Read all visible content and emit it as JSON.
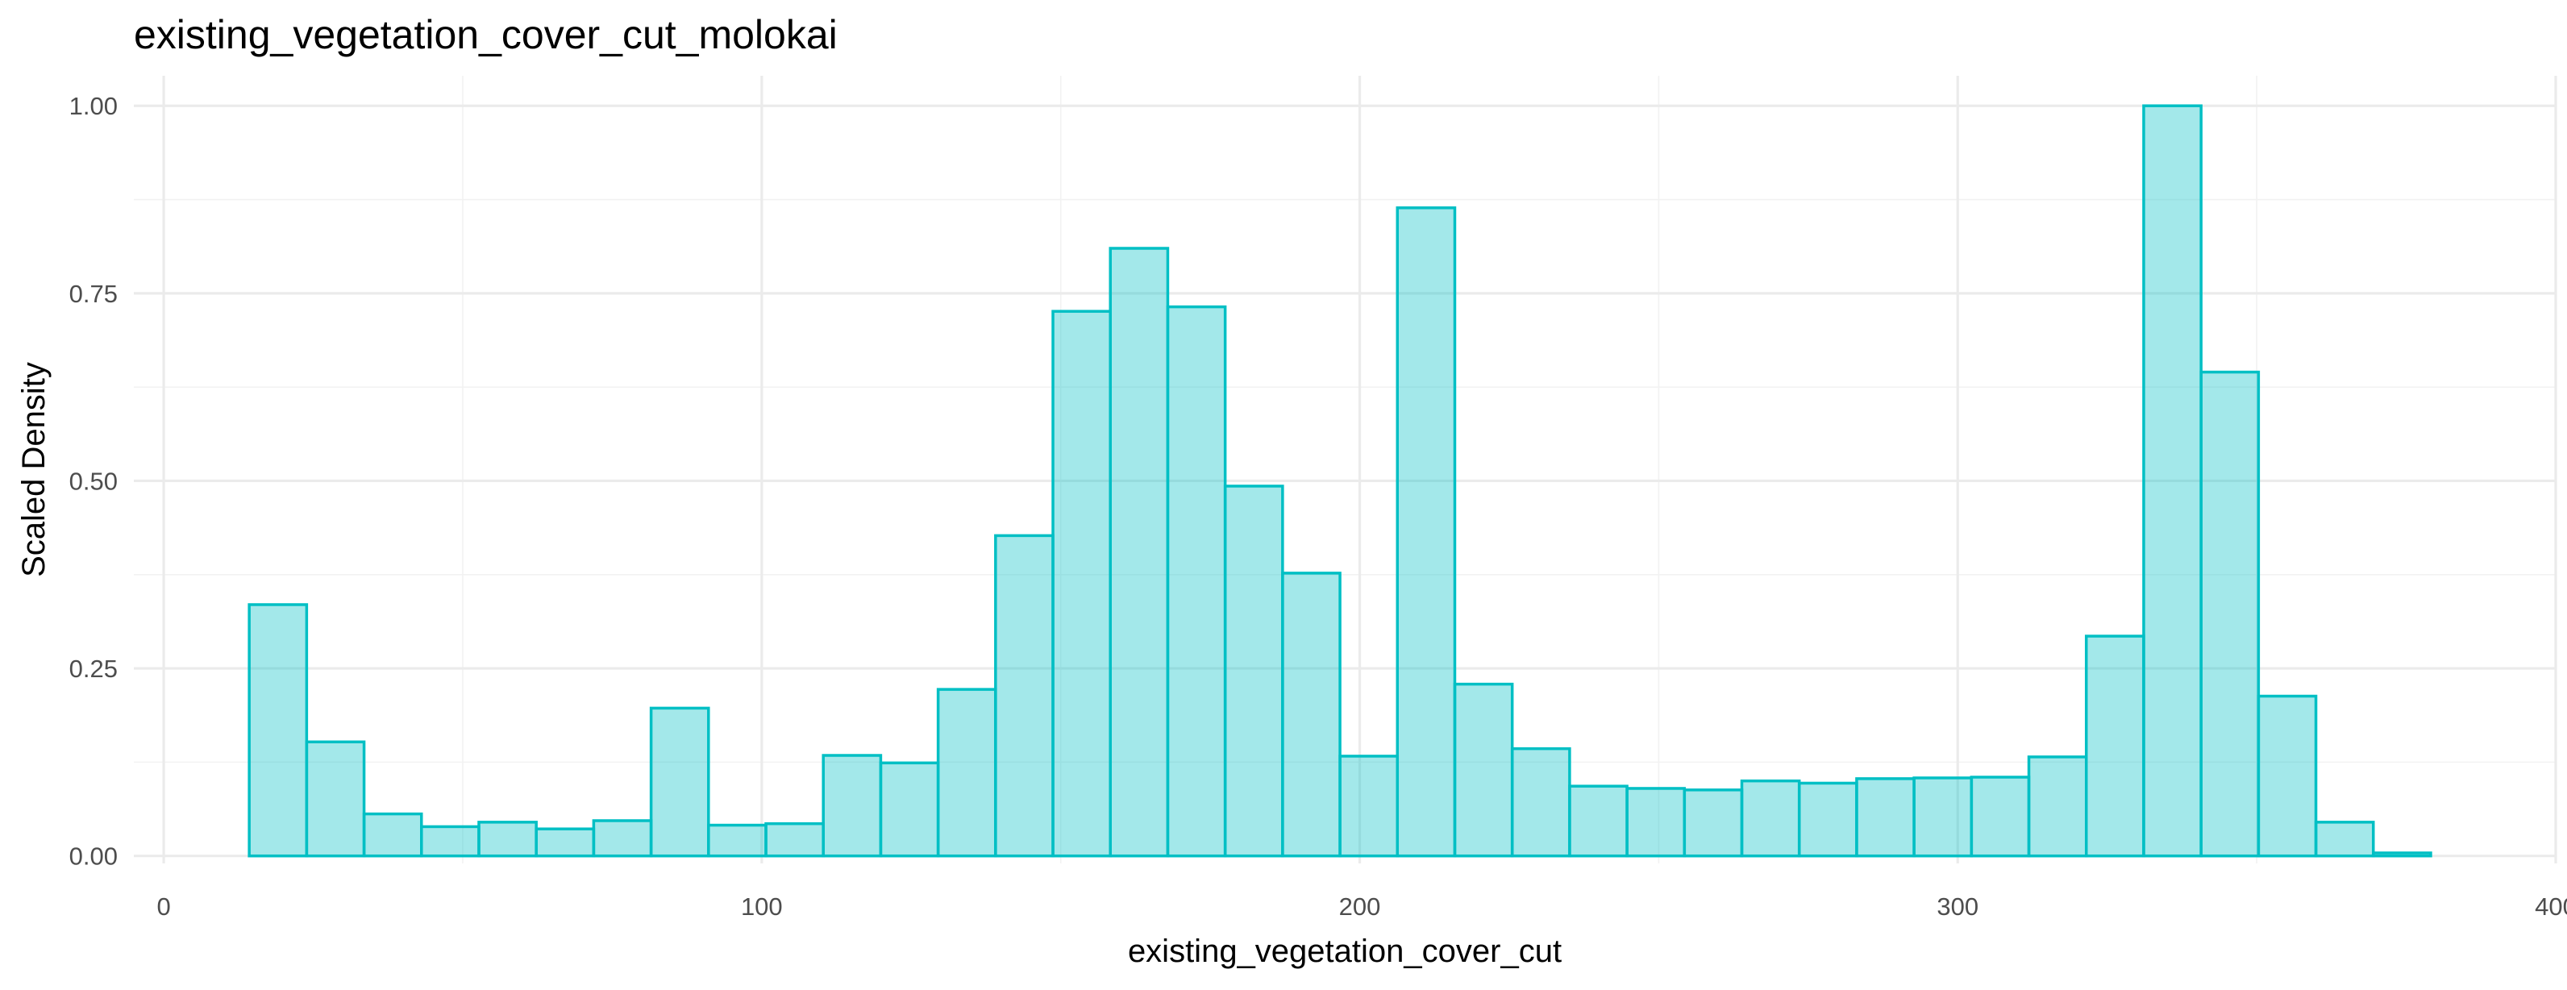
{
  "chart_data": {
    "type": "bar",
    "title": "existing_vegetation_cover_cut_molokai",
    "xlabel": "existing_vegetation_cover_cut",
    "ylabel": "Scaled Density",
    "xlim": [
      -5,
      400
    ],
    "ylim": [
      -0.01,
      1.04
    ],
    "x_ticks": [
      0,
      100,
      200,
      300,
      400
    ],
    "x_tick_labels": [
      "0",
      "100",
      "200",
      "300",
      "400"
    ],
    "y_ticks": [
      0,
      0.25,
      0.5,
      0.75,
      1.0
    ],
    "y_tick_labels": [
      "0.00",
      "0.25",
      "0.50",
      "0.75",
      "1.00"
    ],
    "grid": true,
    "legend": "none",
    "fill_color": "#00bfc4",
    "bin_start": 14.3,
    "bin_width": 9.6,
    "values": [
      0.335,
      0.152,
      0.056,
      0.039,
      0.045,
      0.036,
      0.047,
      0.197,
      0.041,
      0.043,
      0.134,
      0.124,
      0.222,
      0.427,
      0.726,
      0.81,
      0.732,
      0.493,
      0.377,
      0.133,
      0.864,
      0.229,
      0.143,
      0.093,
      0.09,
      0.088,
      0.1,
      0.097,
      0.103,
      0.104,
      0.105,
      0.132,
      0.293,
      1.0,
      0.645,
      0.213,
      0.045,
      0.004
    ]
  }
}
